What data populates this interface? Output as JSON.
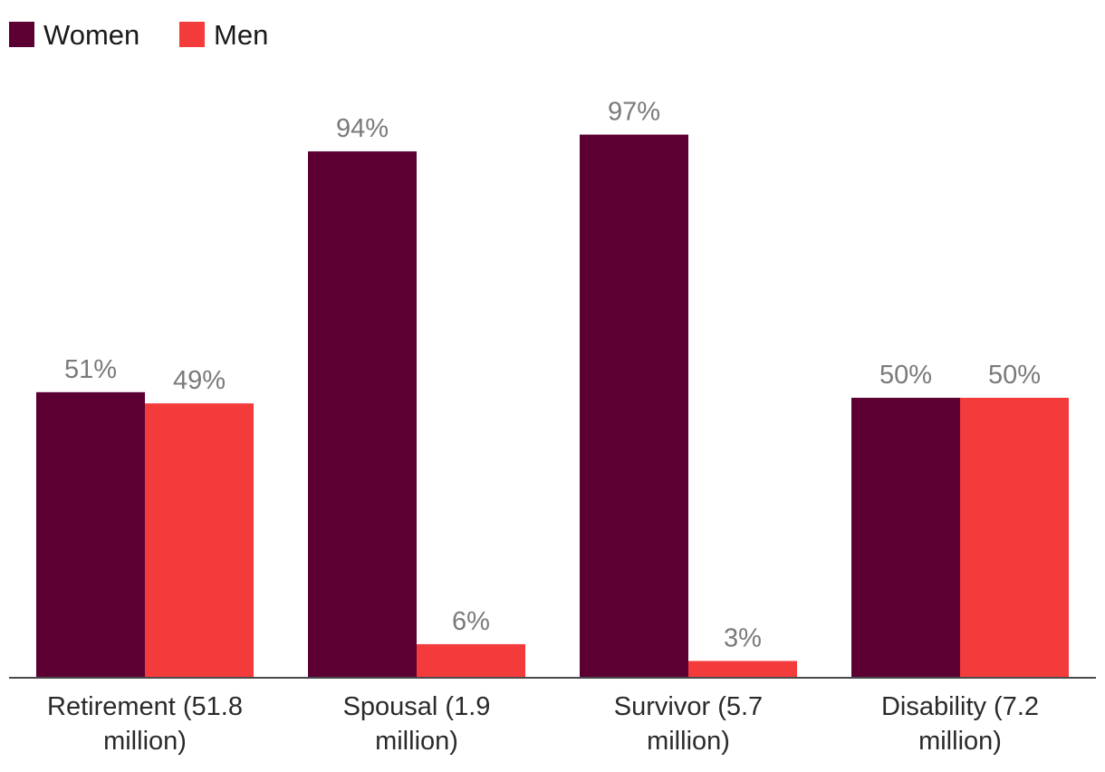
{
  "chart_data": {
    "type": "bar",
    "categories": [
      [
        "Retirement (51.8",
        "million)"
      ],
      [
        "Spousal (1.9",
        "million)"
      ],
      [
        "Survivor (5.7",
        "million)"
      ],
      [
        "Disability (7.2",
        "million)"
      ]
    ],
    "series": [
      {
        "name": "Women",
        "color": "#5c0033",
        "values": [
          51,
          94,
          97,
          50
        ],
        "labels": [
          "51%",
          "94%",
          "97%",
          "50%"
        ]
      },
      {
        "name": "Men",
        "color": "#f43b3c",
        "values": [
          49,
          6,
          3,
          50
        ],
        "labels": [
          "49%",
          "6%",
          "3%",
          "50%"
        ]
      }
    ],
    "ylim": [
      0,
      100
    ],
    "title": "",
    "xlabel": "",
    "ylabel": "",
    "legend_position": "top-left",
    "grid": false
  }
}
